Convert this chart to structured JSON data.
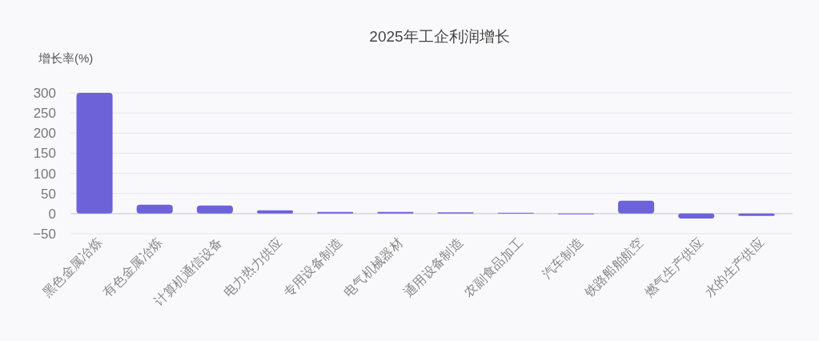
{
  "chart_data": {
    "type": "bar",
    "title": "2025年工企利润增长",
    "ylabel": "增长率(%)",
    "categories": [
      "黑色金属冶炼",
      "有色金属冶炼",
      "计算机通信设备",
      "电力热力供应",
      "专用设备制造",
      "电气机械器材",
      "通用设备制造",
      "农副食品加工",
      "汽车制造",
      "铁路船舶航空",
      "燃气生产供应",
      "水的生产供应"
    ],
    "values": [
      300,
      22,
      20,
      8,
      4,
      4,
      3,
      2,
      -1,
      32,
      -12,
      -6
    ],
    "color": "#6e62d9",
    "ylim": [
      -50,
      300
    ],
    "yticks": [
      -50,
      0,
      50,
      100,
      150,
      200,
      250,
      300
    ],
    "grid": "y"
  }
}
